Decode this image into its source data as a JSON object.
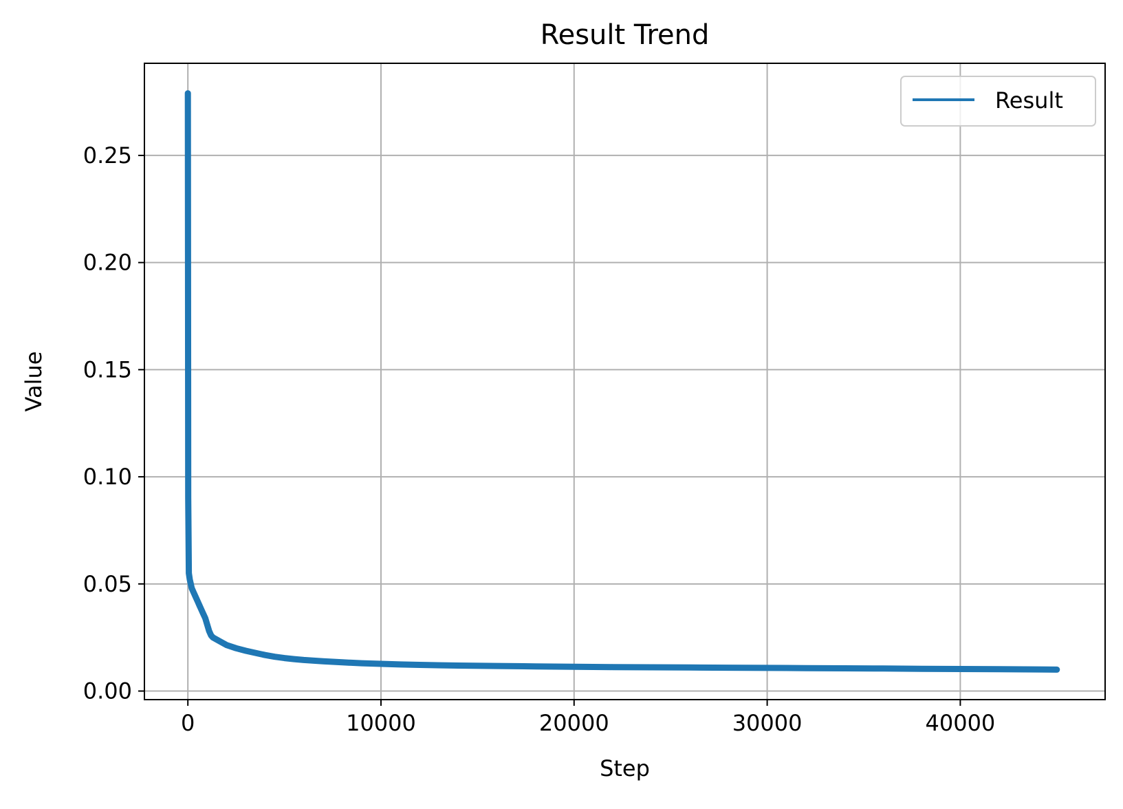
{
  "chart_data": {
    "type": "line",
    "title": "Result Trend",
    "xlabel": "Step",
    "ylabel": "Value",
    "xlim": [
      -2250,
      47500
    ],
    "ylim": [
      -0.004,
      0.293
    ],
    "xticks": [
      0,
      10000,
      20000,
      30000,
      40000
    ],
    "xtick_labels": [
      "0",
      "10000",
      "20000",
      "30000",
      "40000"
    ],
    "yticks": [
      0.0,
      0.05,
      0.1,
      0.15,
      0.2,
      0.25
    ],
    "ytick_labels": [
      "0.00",
      "0.05",
      "0.10",
      "0.15",
      "0.20",
      "0.25"
    ],
    "grid": true,
    "legend_position": "top-right",
    "series": [
      {
        "name": "Result",
        "color": "#1f77b4",
        "x": [
          0,
          20,
          50,
          100,
          150,
          200,
          300,
          400,
          500,
          600,
          700,
          800,
          900,
          1000,
          1100,
          1200,
          1300,
          1500,
          1700,
          2000,
          2500,
          3000,
          3500,
          4000,
          4500,
          5000,
          5500,
          6000,
          7000,
          8000,
          9000,
          10000,
          11000,
          12000,
          14000,
          16000,
          18000,
          20000,
          22000,
          24000,
          26000,
          28000,
          30000,
          32000,
          34000,
          36000,
          38000,
          40000,
          42000,
          44000,
          45000
        ],
        "y": [
          0.279,
          0.09,
          0.055,
          0.052,
          0.05,
          0.048,
          0.046,
          0.044,
          0.042,
          0.04,
          0.038,
          0.036,
          0.034,
          0.031,
          0.028,
          0.026,
          0.025,
          0.024,
          0.023,
          0.0215,
          0.02,
          0.0188,
          0.0178,
          0.0168,
          0.016,
          0.0154,
          0.0149,
          0.0145,
          0.0139,
          0.0134,
          0.013,
          0.0127,
          0.0124,
          0.0122,
          0.0119,
          0.0117,
          0.0115,
          0.0113,
          0.0112,
          0.0111,
          0.011,
          0.0109,
          0.0108,
          0.0107,
          0.0106,
          0.0105,
          0.0104,
          0.0103,
          0.0102,
          0.0101,
          0.01
        ]
      }
    ]
  }
}
